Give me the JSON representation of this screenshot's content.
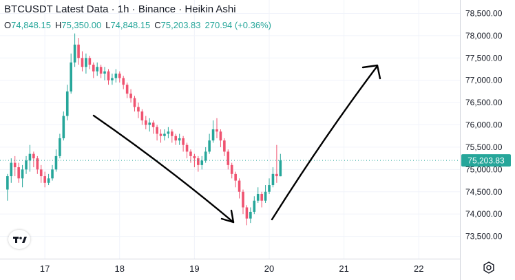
{
  "header": {
    "symbol": "BTCUSDT",
    "source": "Latest Data",
    "interval": "1h",
    "exchange": "Binance",
    "style": "Heikin Ashi",
    "sep": "·"
  },
  "ohlc": {
    "o_label": "O",
    "o_value": "74,848.15",
    "h_label": "H",
    "h_value": "75,350.00",
    "l_label": "L",
    "l_value": "74,848.15",
    "c_label": "C",
    "c_value": "75,203.83",
    "change": "270.94 (+0.36%)"
  },
  "price_label": "75,203.83",
  "colors": {
    "up": "#26a69a",
    "down": "#ef5370",
    "text": "#131722",
    "axis": "#d1d4dc",
    "grid": "#f0f3fa",
    "price_line": "#26a69a"
  },
  "icons": {
    "logo": "tradingview-logo-icon",
    "settings": "gear-icon"
  },
  "chart_data": {
    "type": "candlestick",
    "x_ticks": [
      "17",
      "18",
      "19",
      "20",
      "21",
      "22"
    ],
    "x_tick_positions": [
      17,
      18,
      19,
      20,
      21,
      22
    ],
    "y_ticks": [
      "73,500.00",
      "74,000.00",
      "74,500.00",
      "75,000.00",
      "75,500.00",
      "76,000.00",
      "76,500.00",
      "77,000.00",
      "77,500.00",
      "78,000.00",
      "78,500.00"
    ],
    "y_tick_values": [
      73500,
      74000,
      74500,
      75000,
      75500,
      76000,
      76500,
      77000,
      77500,
      78000,
      78500
    ],
    "ylim": [
      73000,
      78800
    ],
    "xlim": [
      16.4,
      22.55
    ],
    "last_price": 75203.83,
    "grid": true,
    "candles": [
      [
        16.5,
        74550,
        74850,
        74300,
        74900
      ],
      [
        16.55,
        74850,
        75150,
        74700,
        75250
      ],
      [
        16.6,
        75150,
        75050,
        74850,
        75300
      ],
      [
        16.65,
        75050,
        74800,
        74700,
        75150
      ],
      [
        16.7,
        74800,
        75000,
        74600,
        75100
      ],
      [
        16.75,
        75000,
        75200,
        74900,
        75300
      ],
      [
        16.8,
        75200,
        75350,
        74950,
        75550
      ],
      [
        16.85,
        75350,
        75250,
        75050,
        75400
      ],
      [
        16.9,
        75250,
        75000,
        74900,
        75300
      ],
      [
        16.95,
        75000,
        74850,
        74700,
        75100
      ],
      [
        17.0,
        74850,
        74700,
        74600,
        74950
      ],
      [
        17.05,
        74700,
        74800,
        74650,
        74900
      ],
      [
        17.1,
        74800,
        75000,
        74750,
        75100
      ],
      [
        17.15,
        75000,
        75300,
        74950,
        75450
      ],
      [
        17.2,
        75300,
        75700,
        75250,
        75800
      ],
      [
        17.25,
        75700,
        76200,
        75650,
        76300
      ],
      [
        17.3,
        76200,
        76750,
        76100,
        76900
      ],
      [
        17.35,
        76750,
        77400,
        76700,
        77600
      ],
      [
        17.4,
        77400,
        77800,
        77300,
        78050
      ],
      [
        17.45,
        77800,
        77500,
        77350,
        77950
      ],
      [
        17.5,
        77500,
        77300,
        77200,
        77650
      ],
      [
        17.55,
        77300,
        77500,
        77150,
        77600
      ],
      [
        17.6,
        77500,
        77350,
        77250,
        77550
      ],
      [
        17.65,
        77350,
        77200,
        77050,
        77400
      ],
      [
        17.7,
        77200,
        77300,
        77100,
        77400
      ],
      [
        17.75,
        77300,
        77150,
        77050,
        77350
      ],
      [
        17.8,
        77150,
        77200,
        77000,
        77300
      ],
      [
        17.85,
        77200,
        77000,
        76900,
        77250
      ],
      [
        17.9,
        77000,
        77050,
        76900,
        77150
      ],
      [
        17.95,
        77050,
        77150,
        76950,
        77250
      ],
      [
        18.0,
        77150,
        77050,
        76950,
        77200
      ],
      [
        18.05,
        77050,
        76900,
        76800,
        77100
      ],
      [
        18.1,
        76900,
        76700,
        76600,
        76950
      ],
      [
        18.15,
        76700,
        76600,
        76500,
        76800
      ],
      [
        18.2,
        76600,
        76400,
        76300,
        76650
      ],
      [
        18.25,
        76400,
        76300,
        76150,
        76500
      ],
      [
        18.3,
        76300,
        76100,
        76000,
        76350
      ],
      [
        18.35,
        76100,
        76000,
        75900,
        76200
      ],
      [
        18.4,
        76000,
        76050,
        75850,
        76150
      ],
      [
        18.45,
        76050,
        75950,
        75800,
        76100
      ],
      [
        18.5,
        75950,
        75800,
        75650,
        76000
      ],
      [
        18.55,
        75800,
        75750,
        75600,
        75900
      ],
      [
        18.6,
        75750,
        75800,
        75650,
        75900
      ],
      [
        18.65,
        75800,
        75850,
        75700,
        75950
      ],
      [
        18.7,
        75850,
        75750,
        75600,
        75900
      ],
      [
        18.75,
        75750,
        75650,
        75550,
        75800
      ],
      [
        18.8,
        75650,
        75700,
        75550,
        75800
      ],
      [
        18.85,
        75700,
        75550,
        75400,
        75750
      ],
      [
        18.9,
        75550,
        75400,
        75250,
        75600
      ],
      [
        18.95,
        75400,
        75300,
        75150,
        75450
      ],
      [
        19.0,
        75300,
        75250,
        75050,
        75350
      ],
      [
        19.05,
        75250,
        75100,
        74950,
        75300
      ],
      [
        19.1,
        75100,
        75200,
        75000,
        75300
      ],
      [
        19.15,
        75200,
        75400,
        75150,
        75500
      ],
      [
        19.2,
        75400,
        75650,
        75350,
        75800
      ],
      [
        19.25,
        75650,
        75900,
        75600,
        76100
      ],
      [
        19.3,
        75900,
        75850,
        75700,
        76150
      ],
      [
        19.35,
        75850,
        75650,
        75500,
        75900
      ],
      [
        19.4,
        75650,
        75400,
        75300,
        75700
      ],
      [
        19.45,
        75400,
        75100,
        75000,
        75450
      ],
      [
        19.5,
        75100,
        74900,
        74800,
        75150
      ],
      [
        19.55,
        74900,
        74750,
        74600,
        74950
      ],
      [
        19.6,
        74750,
        74500,
        74350,
        74800
      ],
      [
        19.65,
        74500,
        74150,
        74000,
        74550
      ],
      [
        19.7,
        74150,
        73900,
        73750,
        74200
      ],
      [
        19.75,
        73900,
        74050,
        73800,
        74150
      ],
      [
        19.8,
        74050,
        74300,
        74000,
        74400
      ],
      [
        19.85,
        74300,
        74450,
        74250,
        74600
      ],
      [
        19.9,
        74450,
        74300,
        74150,
        74500
      ],
      [
        19.95,
        74300,
        74500,
        74250,
        74650
      ],
      [
        20.0,
        74500,
        74650,
        74450,
        74800
      ],
      [
        20.05,
        74650,
        74900,
        74600,
        75050
      ],
      [
        20.1,
        74900,
        74850,
        74700,
        75550
      ],
      [
        20.15,
        74848.15,
        75203.83,
        74848.15,
        75350
      ]
    ]
  },
  "annotations": {
    "arrow_down": "trend-down-arrow",
    "arrow_up": "trend-up-arrow"
  }
}
